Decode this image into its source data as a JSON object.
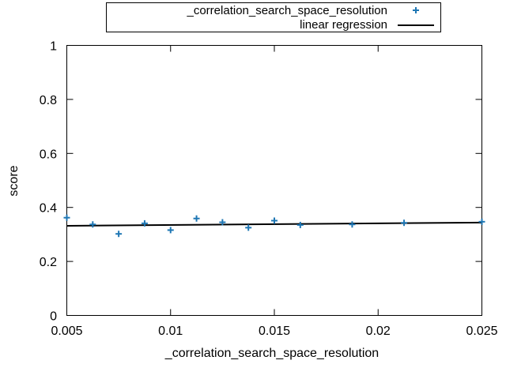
{
  "chart_data": {
    "type": "scatter",
    "xlabel": "_correlation_search_space_resolution",
    "ylabel": "score",
    "xlim": [
      0.005,
      0.025
    ],
    "ylim": [
      0,
      1
    ],
    "x_ticks": [
      0.005,
      0.01,
      0.015,
      0.02,
      0.025
    ],
    "x_tick_labels": [
      "0.005",
      "0.01",
      "0.015",
      "0.02",
      "0.025"
    ],
    "y_ticks": [
      0,
      0.2,
      0.4,
      0.6,
      0.8,
      1
    ],
    "y_tick_labels": [
      "0",
      "0.2",
      "0.4",
      "0.6",
      "0.8",
      "1"
    ],
    "grid": false,
    "legend_position": "top-center-outside",
    "series": [
      {
        "name": "_correlation_search_space_resolution",
        "kind": "scatter",
        "marker": "plus",
        "color": "#1f77b4",
        "x": [
          0.005,
          0.00625,
          0.0075,
          0.00875,
          0.01,
          0.01125,
          0.0125,
          0.01375,
          0.015,
          0.01625,
          0.01875,
          0.02125,
          0.025
        ],
        "y": [
          0.362,
          0.337,
          0.302,
          0.341,
          0.316,
          0.359,
          0.345,
          0.325,
          0.351,
          0.335,
          0.337,
          0.343,
          0.347
        ]
      },
      {
        "name": "linear regression",
        "kind": "line",
        "color": "#000000",
        "x": [
          0.005,
          0.025
        ],
        "y": [
          0.332,
          0.344
        ]
      }
    ]
  }
}
